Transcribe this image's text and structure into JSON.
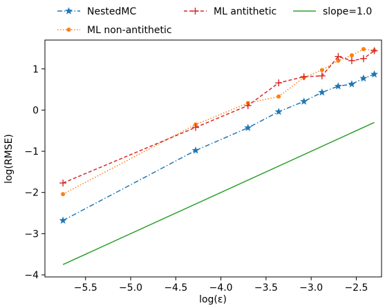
{
  "chart_data": {
    "type": "line",
    "title": "",
    "xlabel": "log(ε)",
    "ylabel": "log(RMSE)",
    "xlim": [
      -5.95,
      -2.22
    ],
    "ylim": [
      -4.05,
      1.7
    ],
    "xticks": [
      -5.5,
      -5.0,
      -4.5,
      -4.0,
      -3.5,
      -3.0,
      -2.5
    ],
    "xtick_labels": [
      "−5.5",
      "−5.0",
      "−4.5",
      "−4.0",
      "−3.5",
      "−3.0",
      "−2.5"
    ],
    "yticks": [
      -4,
      -3,
      -2,
      -1,
      0,
      1
    ],
    "ytick_labels": [
      "−4",
      "−3",
      "−2",
      "−1",
      "0",
      "1"
    ],
    "grid": false,
    "legend_position": "top, above plot",
    "series": [
      {
        "name": "NestedMC",
        "color": "#1f77b4",
        "linestyle": "dashdot",
        "marker": "star",
        "x": [
          -5.75,
          -4.28,
          -3.7,
          -3.36,
          -3.08,
          -2.88,
          -2.7,
          -2.55,
          -2.42,
          -2.3
        ],
        "y": [
          -2.68,
          -0.98,
          -0.43,
          -0.04,
          0.21,
          0.43,
          0.58,
          0.63,
          0.77,
          0.87
        ]
      },
      {
        "name": "ML non-antithetic",
        "color": "#ff7f0e",
        "linestyle": "dotted",
        "marker": "circle",
        "x": [
          -5.75,
          -4.28,
          -3.7,
          -3.36,
          -3.08,
          -2.88,
          -2.7,
          -2.55,
          -2.42,
          -2.3
        ],
        "y": [
          -2.04,
          -0.35,
          0.17,
          0.33,
          0.79,
          0.97,
          1.2,
          1.33,
          1.48,
          1.45
        ]
      },
      {
        "name": "ML antithetic",
        "color": "#d62728",
        "linestyle": "dashed",
        "marker": "plus",
        "x": [
          -5.75,
          -4.28,
          -3.7,
          -3.36,
          -3.08,
          -2.88,
          -2.7,
          -2.55,
          -2.42,
          -2.3
        ],
        "y": [
          -1.77,
          -0.42,
          0.11,
          0.66,
          0.81,
          0.83,
          1.3,
          1.2,
          1.25,
          1.44
        ]
      },
      {
        "name": "slope=1.0",
        "color": "#2ca02c",
        "linestyle": "solid",
        "marker": "none",
        "x": [
          -5.75,
          -2.3
        ],
        "y": [
          -3.75,
          -0.3
        ]
      }
    ]
  }
}
